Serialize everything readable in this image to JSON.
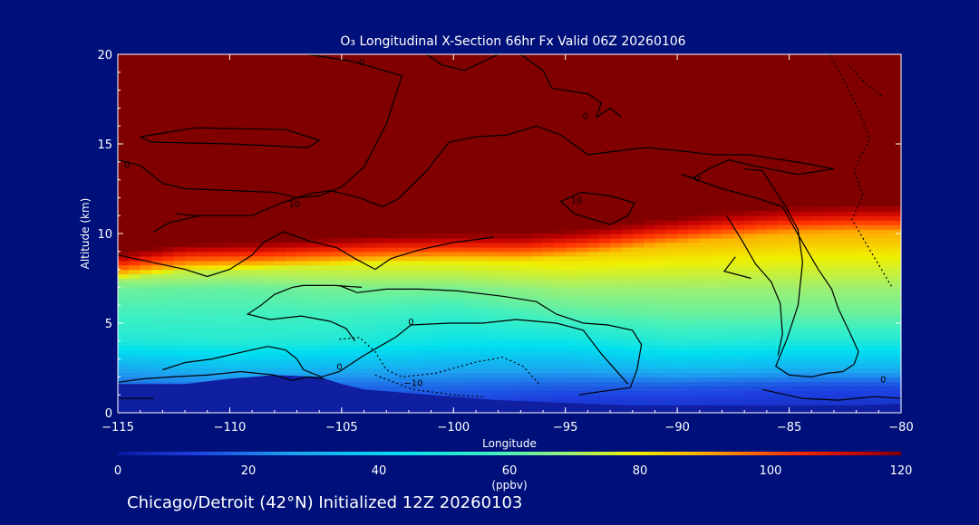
{
  "chart_data": {
    "type": "heatmap",
    "title": "O₃ Longitudinal X-Section 66hr  Fx Valid 06Z 20260106",
    "xlabel": "Longitude",
    "ylabel": "Altitude (km)",
    "xlim": [
      -115,
      -80
    ],
    "ylim": [
      0,
      20
    ],
    "x_ticks": [
      -115,
      -110,
      -105,
      -100,
      -95,
      -90,
      -85,
      -80
    ],
    "x_tick_labels": [
      "−115",
      "−110",
      "−105",
      "−100",
      "−95",
      "−90",
      "−85",
      "−80"
    ],
    "y_ticks": [
      0,
      5,
      10,
      15,
      20
    ],
    "y_tick_labels": [
      "0",
      "5",
      "10",
      "15",
      "20"
    ],
    "colorbar": {
      "label": "(ppbv)",
      "min": 0,
      "max": 120,
      "ticks": [
        0,
        20,
        40,
        60,
        80,
        100,
        120
      ],
      "tick_labels": [
        "0",
        "20",
        "40",
        "60",
        "80",
        "100",
        "120"
      ]
    },
    "boundary": {
      "description_values": "altitude (km) of the sharp transition to >=120 ppbv ozone along longitude",
      "lon": [
        -115,
        -112,
        -109,
        -106,
        -103,
        -100,
        -97,
        -94,
        -91,
        -88,
        -85,
        -82,
        -80
      ],
      "alt": [
        8.3,
        8.8,
        8.9,
        9.1,
        9.3,
        9.4,
        9.4,
        9.7,
        10.2,
        10.6,
        10.9,
        11.0,
        11.0
      ]
    },
    "columns": [
      {
        "lon": -115,
        "alt": [
          0,
          1.5,
          2.5,
          4,
          5.5,
          7,
          8.3
        ],
        "o3": [
          10,
          18,
          28,
          45,
          50,
          55,
          72
        ]
      },
      {
        "lon": -110,
        "alt": [
          0,
          1.5,
          2.5,
          4,
          5.5,
          7,
          8.8
        ],
        "o3": [
          10,
          20,
          32,
          46,
          50,
          54,
          75
        ]
      },
      {
        "lon": -105,
        "alt": [
          0,
          1.5,
          2.5,
          4,
          5.5,
          7,
          9.1
        ],
        "o3": [
          10,
          18,
          30,
          45,
          50,
          56,
          78
        ]
      },
      {
        "lon": -100,
        "alt": [
          0,
          1.5,
          2.5,
          4,
          5.5,
          7,
          9.4
        ],
        "o3": [
          8,
          18,
          28,
          42,
          48,
          56,
          82
        ]
      },
      {
        "lon": -95,
        "alt": [
          0,
          1.5,
          2.5,
          4,
          5.5,
          7,
          9.6
        ],
        "o3": [
          6,
          16,
          28,
          42,
          52,
          60,
          85
        ]
      },
      {
        "lon": -90,
        "alt": [
          0,
          1.5,
          2.5,
          4,
          5.5,
          7,
          10.4
        ],
        "o3": [
          6,
          16,
          32,
          46,
          54,
          60,
          88
        ]
      },
      {
        "lon": -85,
        "alt": [
          0,
          1.5,
          2.5,
          4,
          5.5,
          7,
          10.9
        ],
        "o3": [
          5,
          14,
          30,
          45,
          54,
          60,
          88
        ]
      },
      {
        "lon": -80,
        "alt": [
          0,
          1.5,
          2.5,
          4,
          5.5,
          7,
          11.0
        ],
        "o3": [
          5,
          14,
          30,
          45,
          54,
          60,
          88
        ]
      }
    ],
    "terrain": {
      "lon": [
        -115,
        -112,
        -110,
        -108,
        -106,
        -105,
        -104,
        -102,
        -100,
        -98,
        -96,
        -94,
        -92,
        -90,
        -88,
        -85,
        -82,
        -80
      ],
      "alt": [
        1.6,
        1.6,
        1.9,
        2.1,
        2.0,
        1.6,
        1.3,
        1.1,
        0.9,
        0.7,
        0.6,
        0.5,
        0.4,
        0.4,
        0.4,
        0.4,
        0.4,
        0.5
      ]
    },
    "contour_labels": [
      {
        "text": "0",
        "lon": -104.1,
        "alt": 19.6
      },
      {
        "text": "0",
        "lon": -94.1,
        "alt": 16.6
      },
      {
        "text": "0",
        "lon": -114.6,
        "alt": 13.9
      },
      {
        "text": "10",
        "lon": -107.1,
        "alt": 11.7
      },
      {
        "text": "10",
        "lon": -94.5,
        "alt": 11.9
      },
      {
        "text": "0",
        "lon": -89.1,
        "alt": 13.1
      },
      {
        "text": "0",
        "lon": -101.9,
        "alt": 5.1
      },
      {
        "text": "0",
        "lon": -105.1,
        "alt": 2.6
      },
      {
        "text": "−10",
        "lon": -101.8,
        "alt": 1.7
      },
      {
        "text": "0",
        "lon": -80.8,
        "alt": 1.9
      }
    ],
    "grid": false,
    "legend": "colorbar-bottom"
  },
  "caption": "Chicago/Detroit (42°N) Initialized 12Z 20260103",
  "colors": {
    "background": "#00107a",
    "high_ozone": "#800000",
    "terrain": "#101ea0",
    "contour": "#000000"
  }
}
